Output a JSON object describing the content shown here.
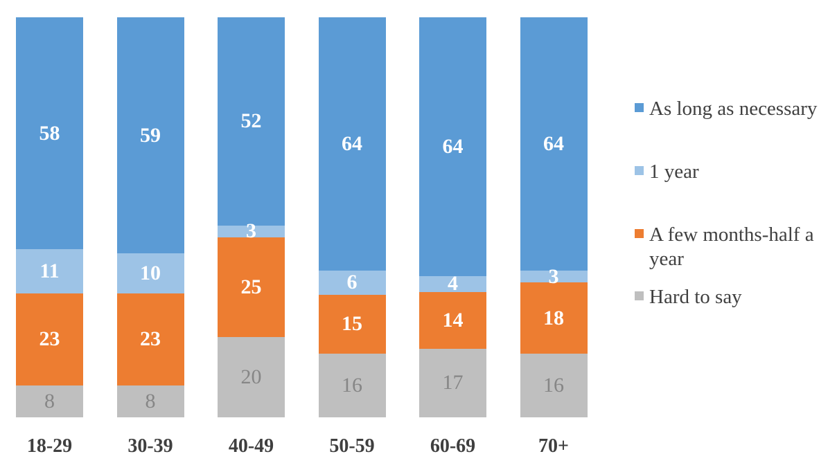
{
  "chart_data": {
    "type": "bar",
    "variant": "stacked-100-percent-column",
    "title": "",
    "xlabel": "",
    "ylabel": "",
    "grid": false,
    "legend_position": "right",
    "background_color": "#FFFFFF",
    "axis_label_color": "#3F3F3F",
    "legend_text_color": "#404040",
    "categories": [
      "18-29",
      "30-39",
      "40-49",
      "50-59",
      "60-69",
      "70+"
    ],
    "series": [
      {
        "name": "As long as necessary",
        "color": "#5B9BD5",
        "label_color": "#FFFFFF",
        "label_bold": true,
        "values": [
          58,
          59,
          52,
          64,
          64,
          64
        ]
      },
      {
        "name": "1 year",
        "color": "#9DC3E6",
        "label_color": "#FFFFFF",
        "label_bold": true,
        "values": [
          11,
          10,
          3,
          6,
          4,
          3
        ]
      },
      {
        "name": "A few months-half a year",
        "color": "#ED7D31",
        "label_color": "#FFFFFF",
        "label_bold": true,
        "values": [
          23,
          23,
          25,
          15,
          14,
          18
        ]
      },
      {
        "name": "Hard to say",
        "color": "#BFBFBF",
        "label_color": "#868686",
        "label_bold": false,
        "values": [
          8,
          8,
          20,
          16,
          17,
          16
        ]
      }
    ]
  }
}
